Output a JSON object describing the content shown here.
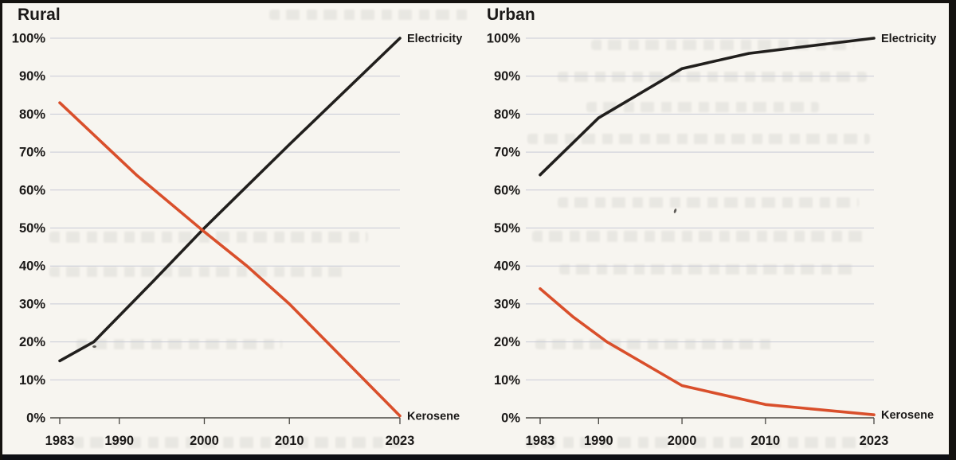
{
  "page": {
    "background": "#f7f5f0",
    "frame_color": "#14120f",
    "grid_color": "#c6c8d5",
    "axis_color": "#4a4843",
    "text_color": "#1b1918"
  },
  "chart_data": [
    {
      "type": "line",
      "title": "Rural",
      "xlim": [
        1983,
        2023
      ],
      "ylim": [
        0,
        100
      ],
      "grid": true,
      "legend_position": "line-end-right",
      "x_ticks": [
        {
          "value": 1983,
          "label": "1983"
        },
        {
          "value": 1990,
          "label": "1990"
        },
        {
          "value": 2000,
          "label": "2000"
        },
        {
          "value": 2010,
          "label": "2010"
        },
        {
          "value": 2023,
          "label": "2023"
        }
      ],
      "y_ticks": [
        {
          "value": 100,
          "label": "100%"
        },
        {
          "value": 90,
          "label": "90%"
        },
        {
          "value": 80,
          "label": "80%"
        },
        {
          "value": 70,
          "label": "70%"
        },
        {
          "value": 60,
          "label": "60%"
        },
        {
          "value": 50,
          "label": "50%"
        },
        {
          "value": 40,
          "label": "40%"
        },
        {
          "value": 30,
          "label": "30%"
        },
        {
          "value": 20,
          "label": "20%"
        },
        {
          "value": 10,
          "label": "10%"
        },
        {
          "value": 0,
          "label": "0%"
        }
      ],
      "series": [
        {
          "name": "Electricity",
          "color": "#211f1d",
          "label_color": "#1b1918",
          "points": [
            [
              1983,
              15
            ],
            [
              1987,
              20
            ],
            [
              1994,
              36
            ],
            [
              2000,
              50
            ],
            [
              2010,
              72
            ],
            [
              2023,
              100
            ]
          ]
        },
        {
          "name": "Kerosene",
          "color": "#d94f2b",
          "label_color": "#e0582b",
          "points": [
            [
              1983,
              83
            ],
            [
              1992,
              64
            ],
            [
              2000,
              49
            ],
            [
              2005,
              40
            ],
            [
              2010,
              30
            ],
            [
              2023,
              0.5
            ]
          ]
        }
      ]
    },
    {
      "type": "line",
      "title": "Urban",
      "xlim": [
        1983,
        2023
      ],
      "ylim": [
        0,
        100
      ],
      "grid": true,
      "legend_position": "line-end-right",
      "x_ticks": [
        {
          "value": 1983,
          "label": "1983"
        },
        {
          "value": 1990,
          "label": "1990"
        },
        {
          "value": 2000,
          "label": "2000"
        },
        {
          "value": 2010,
          "label": "2010"
        },
        {
          "value": 2023,
          "label": "2023"
        }
      ],
      "y_ticks": [
        {
          "value": 100,
          "label": "100%"
        },
        {
          "value": 90,
          "label": "90%"
        },
        {
          "value": 80,
          "label": "80%"
        },
        {
          "value": 70,
          "label": "70%"
        },
        {
          "value": 60,
          "label": "60%"
        },
        {
          "value": 50,
          "label": "50%"
        },
        {
          "value": 40,
          "label": "40%"
        },
        {
          "value": 30,
          "label": "30%"
        },
        {
          "value": 20,
          "label": "20%"
        },
        {
          "value": 10,
          "label": "10%"
        },
        {
          "value": 0,
          "label": "0%"
        }
      ],
      "series": [
        {
          "name": "Electricity",
          "color": "#211f1d",
          "label_color": "#1b1918",
          "points": [
            [
              1983,
              64
            ],
            [
              1990,
              79
            ],
            [
              2000,
              92
            ],
            [
              2008,
              96
            ],
            [
              2023,
              100
            ]
          ]
        },
        {
          "name": "Kerosene",
          "color": "#d94f2b",
          "label_color": "#e0582b",
          "points": [
            [
              1983,
              34
            ],
            [
              1987,
              26.5
            ],
            [
              1991,
              20
            ],
            [
              2000,
              8.5
            ],
            [
              2010,
              3.5
            ],
            [
              2023,
              0.8
            ]
          ]
        }
      ]
    }
  ]
}
